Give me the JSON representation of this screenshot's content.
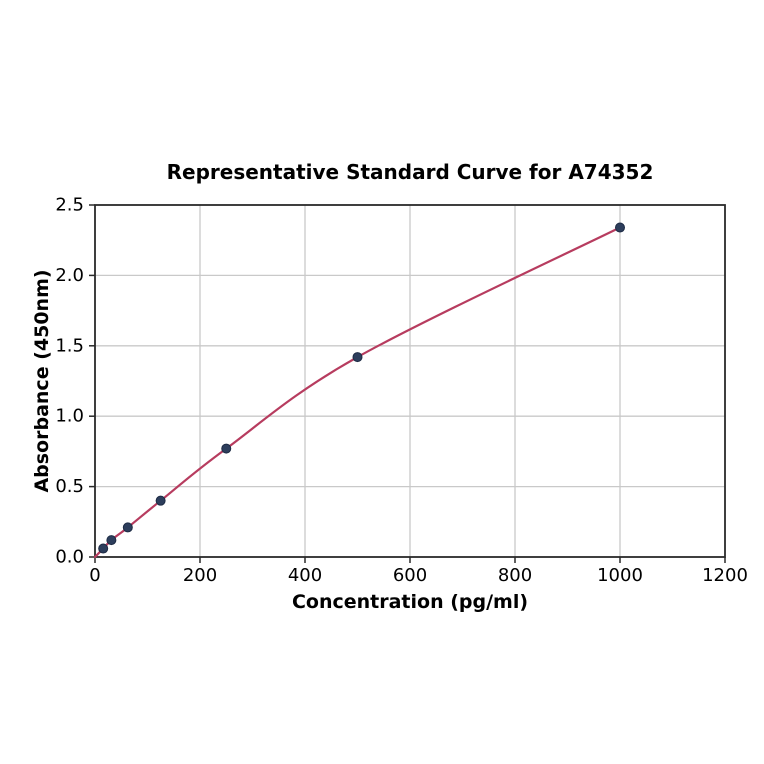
{
  "chart_data": {
    "type": "scatter",
    "title": "Representative Standard Curve for A74352",
    "xlabel": "Concentration (pg/ml)",
    "ylabel": "Absorbance (450nm)",
    "x": [
      15.6,
      31.2,
      62.5,
      125,
      250,
      500,
      1000
    ],
    "y": [
      0.06,
      0.12,
      0.21,
      0.4,
      0.77,
      1.42,
      2.34
    ],
    "curve_start": [
      0,
      0.0
    ],
    "xlim": [
      0,
      1200
    ],
    "ylim": [
      0,
      2.5
    ],
    "xticks": [
      "0",
      "200",
      "400",
      "600",
      "800",
      "1000",
      "1200"
    ],
    "yticks": [
      "0.0",
      "0.5",
      "1.0",
      "1.5",
      "2.0",
      "2.5"
    ],
    "grid": true,
    "legend_position": "none",
    "colors": {
      "line": "#b73c5f",
      "marker_fill": "#2d3e5c",
      "marker_edge": "#1d2b44",
      "grid": "#c9c9c9",
      "spine": "#2a2a2a",
      "text": "#000000"
    }
  }
}
